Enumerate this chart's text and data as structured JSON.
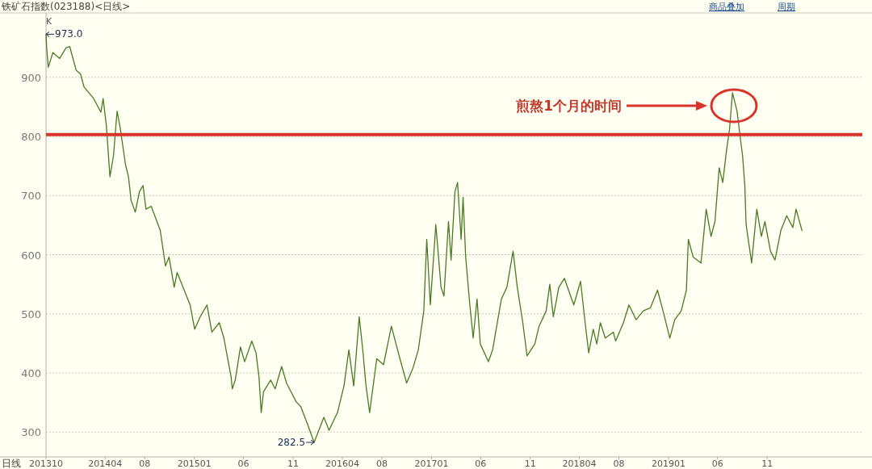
{
  "chart_data": {
    "type": "line",
    "title": "铁矿石指数(023188)<日线>",
    "annotations": [
      "K",
      "日线",
      "商品叠加",
      "周期",
      "煎熬1个月的时间",
      {
        "text": "973.0",
        "x": "2013-10-01",
        "y": 973
      },
      {
        "text": "282.5",
        "x": "2016-01-05",
        "y": 282.5
      }
    ],
    "xlim": [
      "2013-10-01",
      "2020-08-20"
    ],
    "ylim": [
      258,
      1009
    ],
    "xticks": [
      {
        "value": "2013-10",
        "label": "201310"
      },
      {
        "value": "2014-04",
        "label": "201404"
      },
      {
        "value": "2014-08",
        "label": "08"
      },
      {
        "value": "2015-01",
        "label": "201501"
      },
      {
        "value": "2015-06",
        "label": "06"
      },
      {
        "value": "2015-11",
        "label": "11"
      },
      {
        "value": "2016-04",
        "label": "201604"
      },
      {
        "value": "2016-08",
        "label": "08"
      },
      {
        "value": "2017-01",
        "label": "201701"
      },
      {
        "value": "2017-06",
        "label": "06"
      },
      {
        "value": "2017-11",
        "label": "11"
      },
      {
        "value": "2018-04",
        "label": "201804"
      },
      {
        "value": "2018-08",
        "label": "08"
      },
      {
        "value": "2019-01",
        "label": "201901"
      },
      {
        "value": "2019-06",
        "label": "06"
      },
      {
        "value": "2019-11",
        "label": "11"
      }
    ],
    "yticks": [
      300,
      400,
      500,
      600,
      700,
      800,
      900
    ],
    "grid": "y",
    "ref_lines": [
      {
        "axis": "y",
        "value": 803,
        "color": "#d9342b"
      }
    ],
    "x": [
      "2013-10-01",
      "2013-10-03",
      "2013-10-08",
      "2013-10-22",
      "2013-11-12",
      "2013-12-02",
      "2013-12-13",
      "2014-01-02",
      "2014-01-15",
      "2014-01-26",
      "2014-02-25",
      "2014-03-19",
      "2014-03-26",
      "2014-04-05",
      "2014-04-16",
      "2014-04-27",
      "2014-05-08",
      "2014-05-18",
      "2014-06-03",
      "2014-06-12",
      "2014-06-20",
      "2014-07-03",
      "2014-07-16",
      "2014-07-27",
      "2014-08-05",
      "2014-08-21",
      "2014-09-18",
      "2014-10-04",
      "2014-10-15",
      "2014-10-31",
      "2014-11-09",
      "2014-11-27",
      "2014-12-19",
      "2015-01-02",
      "2015-01-19",
      "2015-02-09",
      "2015-02-24",
      "2015-03-19",
      "2015-04-02",
      "2015-04-24",
      "2015-04-28",
      "2015-05-07",
      "2015-05-23",
      "2015-06-05",
      "2015-06-27",
      "2015-07-10",
      "2015-07-19",
      "2015-07-26",
      "2015-08-02",
      "2015-08-24",
      "2015-09-07",
      "2015-09-27",
      "2015-10-12",
      "2015-10-26",
      "2015-11-11",
      "2015-11-25",
      "2015-12-16",
      "2016-01-05",
      "2016-02-04",
      "2016-02-20",
      "2016-03-17",
      "2016-04-06",
      "2016-04-21",
      "2016-05-06",
      "2016-05-23",
      "2016-06-02",
      "2016-06-13",
      "2016-06-24",
      "2016-07-16",
      "2016-08-06",
      "2016-08-30",
      "2016-09-23",
      "2016-10-16",
      "2016-11-05",
      "2016-11-21",
      "2016-12-08",
      "2016-12-17",
      "2016-12-28",
      "2017-01-14",
      "2017-01-30",
      "2017-02-08",
      "2017-02-22",
      "2017-03-02",
      "2017-03-14",
      "2017-03-22",
      "2017-04-02",
      "2017-04-08",
      "2017-04-16",
      "2017-04-28",
      "2017-05-09",
      "2017-05-21",
      "2017-05-31",
      "2017-06-25",
      "2017-07-08",
      "2017-08-04",
      "2017-08-21",
      "2017-09-09",
      "2017-09-22",
      "2017-10-09",
      "2017-10-22",
      "2017-11-15",
      "2017-11-28",
      "2017-12-20",
      "2017-12-31",
      "2018-01-11",
      "2018-01-28",
      "2018-02-14",
      "2018-03-15",
      "2018-04-05",
      "2018-04-19",
      "2018-04-30",
      "2018-05-14",
      "2018-05-25",
      "2018-06-05",
      "2018-06-20",
      "2018-07-15",
      "2018-07-22",
      "2018-08-15",
      "2018-09-01",
      "2018-09-23",
      "2018-10-15",
      "2018-11-06",
      "2018-11-28",
      "2018-12-15",
      "2019-01-05",
      "2019-01-20",
      "2019-02-09",
      "2019-02-25",
      "2019-03-03",
      "2019-03-18",
      "2019-04-11",
      "2019-04-27",
      "2019-05-12",
      "2019-05-24",
      "2019-06-06",
      "2019-06-17",
      "2019-06-29",
      "2019-07-08",
      "2019-07-17",
      "2019-07-31",
      "2019-08-10",
      "2019-08-17",
      "2019-08-24",
      "2019-08-28",
      "2019-09-14",
      "2019-09-30",
      "2019-10-14",
      "2019-10-25",
      "2019-11-11",
      "2019-11-25",
      "2019-12-13",
      "2019-12-31",
      "2020-01-19",
      "2020-01-29",
      "2020-02-16"
    ],
    "series": [
      {
        "color": "#4a7a22",
        "values": [
          973,
          950,
          917,
          942,
          932,
          950,
          952,
          912,
          906,
          884,
          864,
          841,
          864,
          818,
          732,
          768,
          843,
          813,
          752,
          732,
          692,
          672,
          707,
          717,
          677,
          682,
          641,
          581,
          596,
          545,
          570,
          545,
          515,
          474,
          495,
          515,
          469,
          485,
          459,
          394,
          373,
          388,
          444,
          419,
          454,
          434,
          394,
          333,
          368,
          388,
          373,
          411,
          383,
          368,
          351,
          343,
          313,
          282.5,
          325,
          303,
          333,
          378,
          439,
          378,
          495,
          444,
          378,
          333,
          424,
          414,
          479,
          429,
          383,
          409,
          439,
          505,
          626,
          515,
          651,
          545,
          530,
          656,
          591,
          707,
          722,
          626,
          697,
          596,
          520,
          459,
          525,
          449,
          419,
          439,
          525,
          545,
          606,
          545,
          485,
          429,
          449,
          479,
          505,
          550,
          495,
          545,
          560,
          515,
          555,
          485,
          434,
          474,
          449,
          485,
          459,
          469,
          454,
          485,
          515,
          490,
          505,
          510,
          540,
          505,
          459,
          490,
          505,
          540,
          626,
          596,
          586,
          677,
          631,
          656,
          747,
          722,
          778,
          813,
          874,
          843,
          798,
          768,
          717,
          651,
          586,
          677,
          631,
          656,
          606,
          591,
          641,
          666,
          646,
          677,
          641
        ]
      }
    ]
  }
}
